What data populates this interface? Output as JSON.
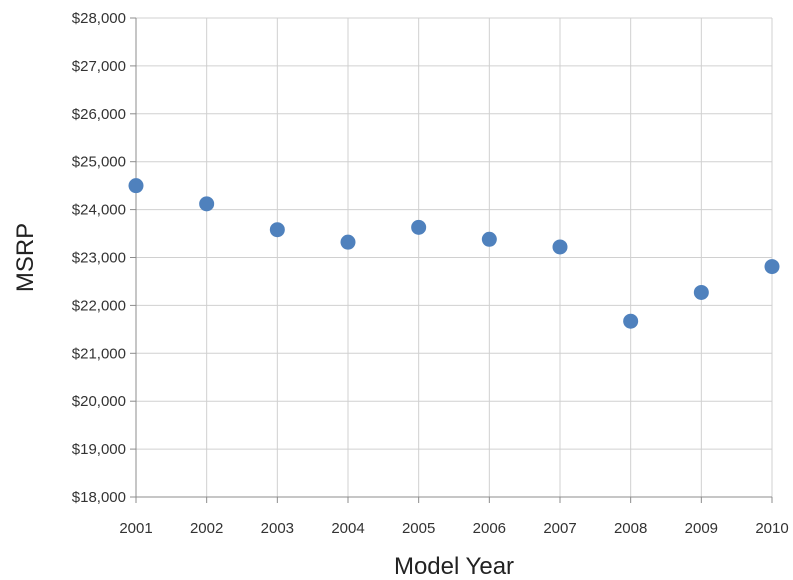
{
  "chart_data": {
    "type": "scatter",
    "title": "",
    "xlabel": "Model Year",
    "ylabel": "MSRP",
    "x": [
      2001,
      2002,
      2003,
      2004,
      2005,
      2006,
      2007,
      2008,
      2009,
      2010
    ],
    "series": [
      {
        "name": "",
        "color": "#4f81bd",
        "values": [
          24500,
          24120,
          23580,
          23320,
          23630,
          23380,
          23220,
          21670,
          22270,
          22810
        ]
      }
    ],
    "xlim": [
      2001,
      2010
    ],
    "ylim": [
      18000,
      28000
    ],
    "x_ticks": [
      "2001",
      "2002",
      "2003",
      "2004",
      "2005",
      "2006",
      "2007",
      "2008",
      "2009",
      "2010"
    ],
    "y_ticks": [
      "$18,000",
      "$19,000",
      "$20,000",
      "$21,000",
      "$22,000",
      "$23,000",
      "$24,000",
      "$25,000",
      "$26,000",
      "$27,000",
      "$28,000"
    ],
    "grid": true,
    "legend": "none"
  }
}
